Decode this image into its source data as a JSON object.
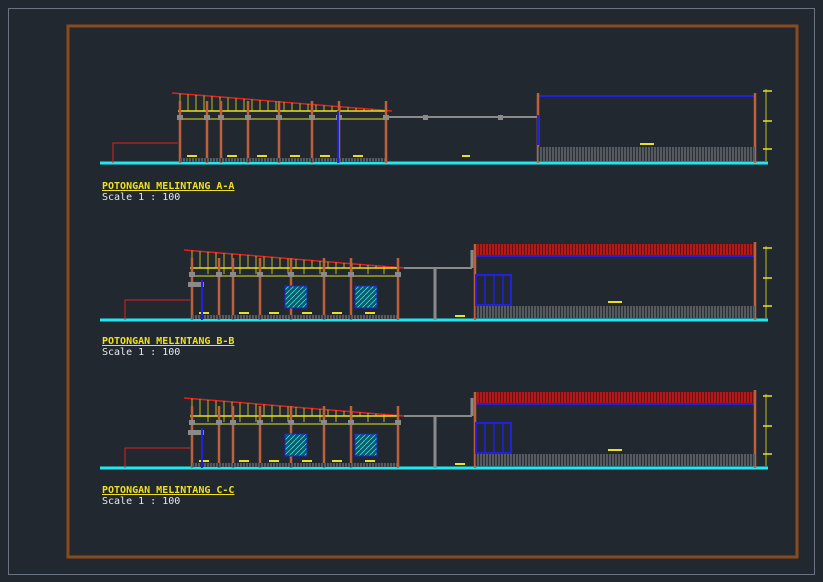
{
  "sections": [
    {
      "title": "POTONGAN MELINTANG A-A",
      "scale": "Scale 1 : 100"
    },
    {
      "title": "POTONGAN MELINTANG B-B",
      "scale": "Scale 1 : 100"
    },
    {
      "title": "POTONGAN MELINTANG C-C",
      "scale": "Scale 1 : 100"
    }
  ]
}
